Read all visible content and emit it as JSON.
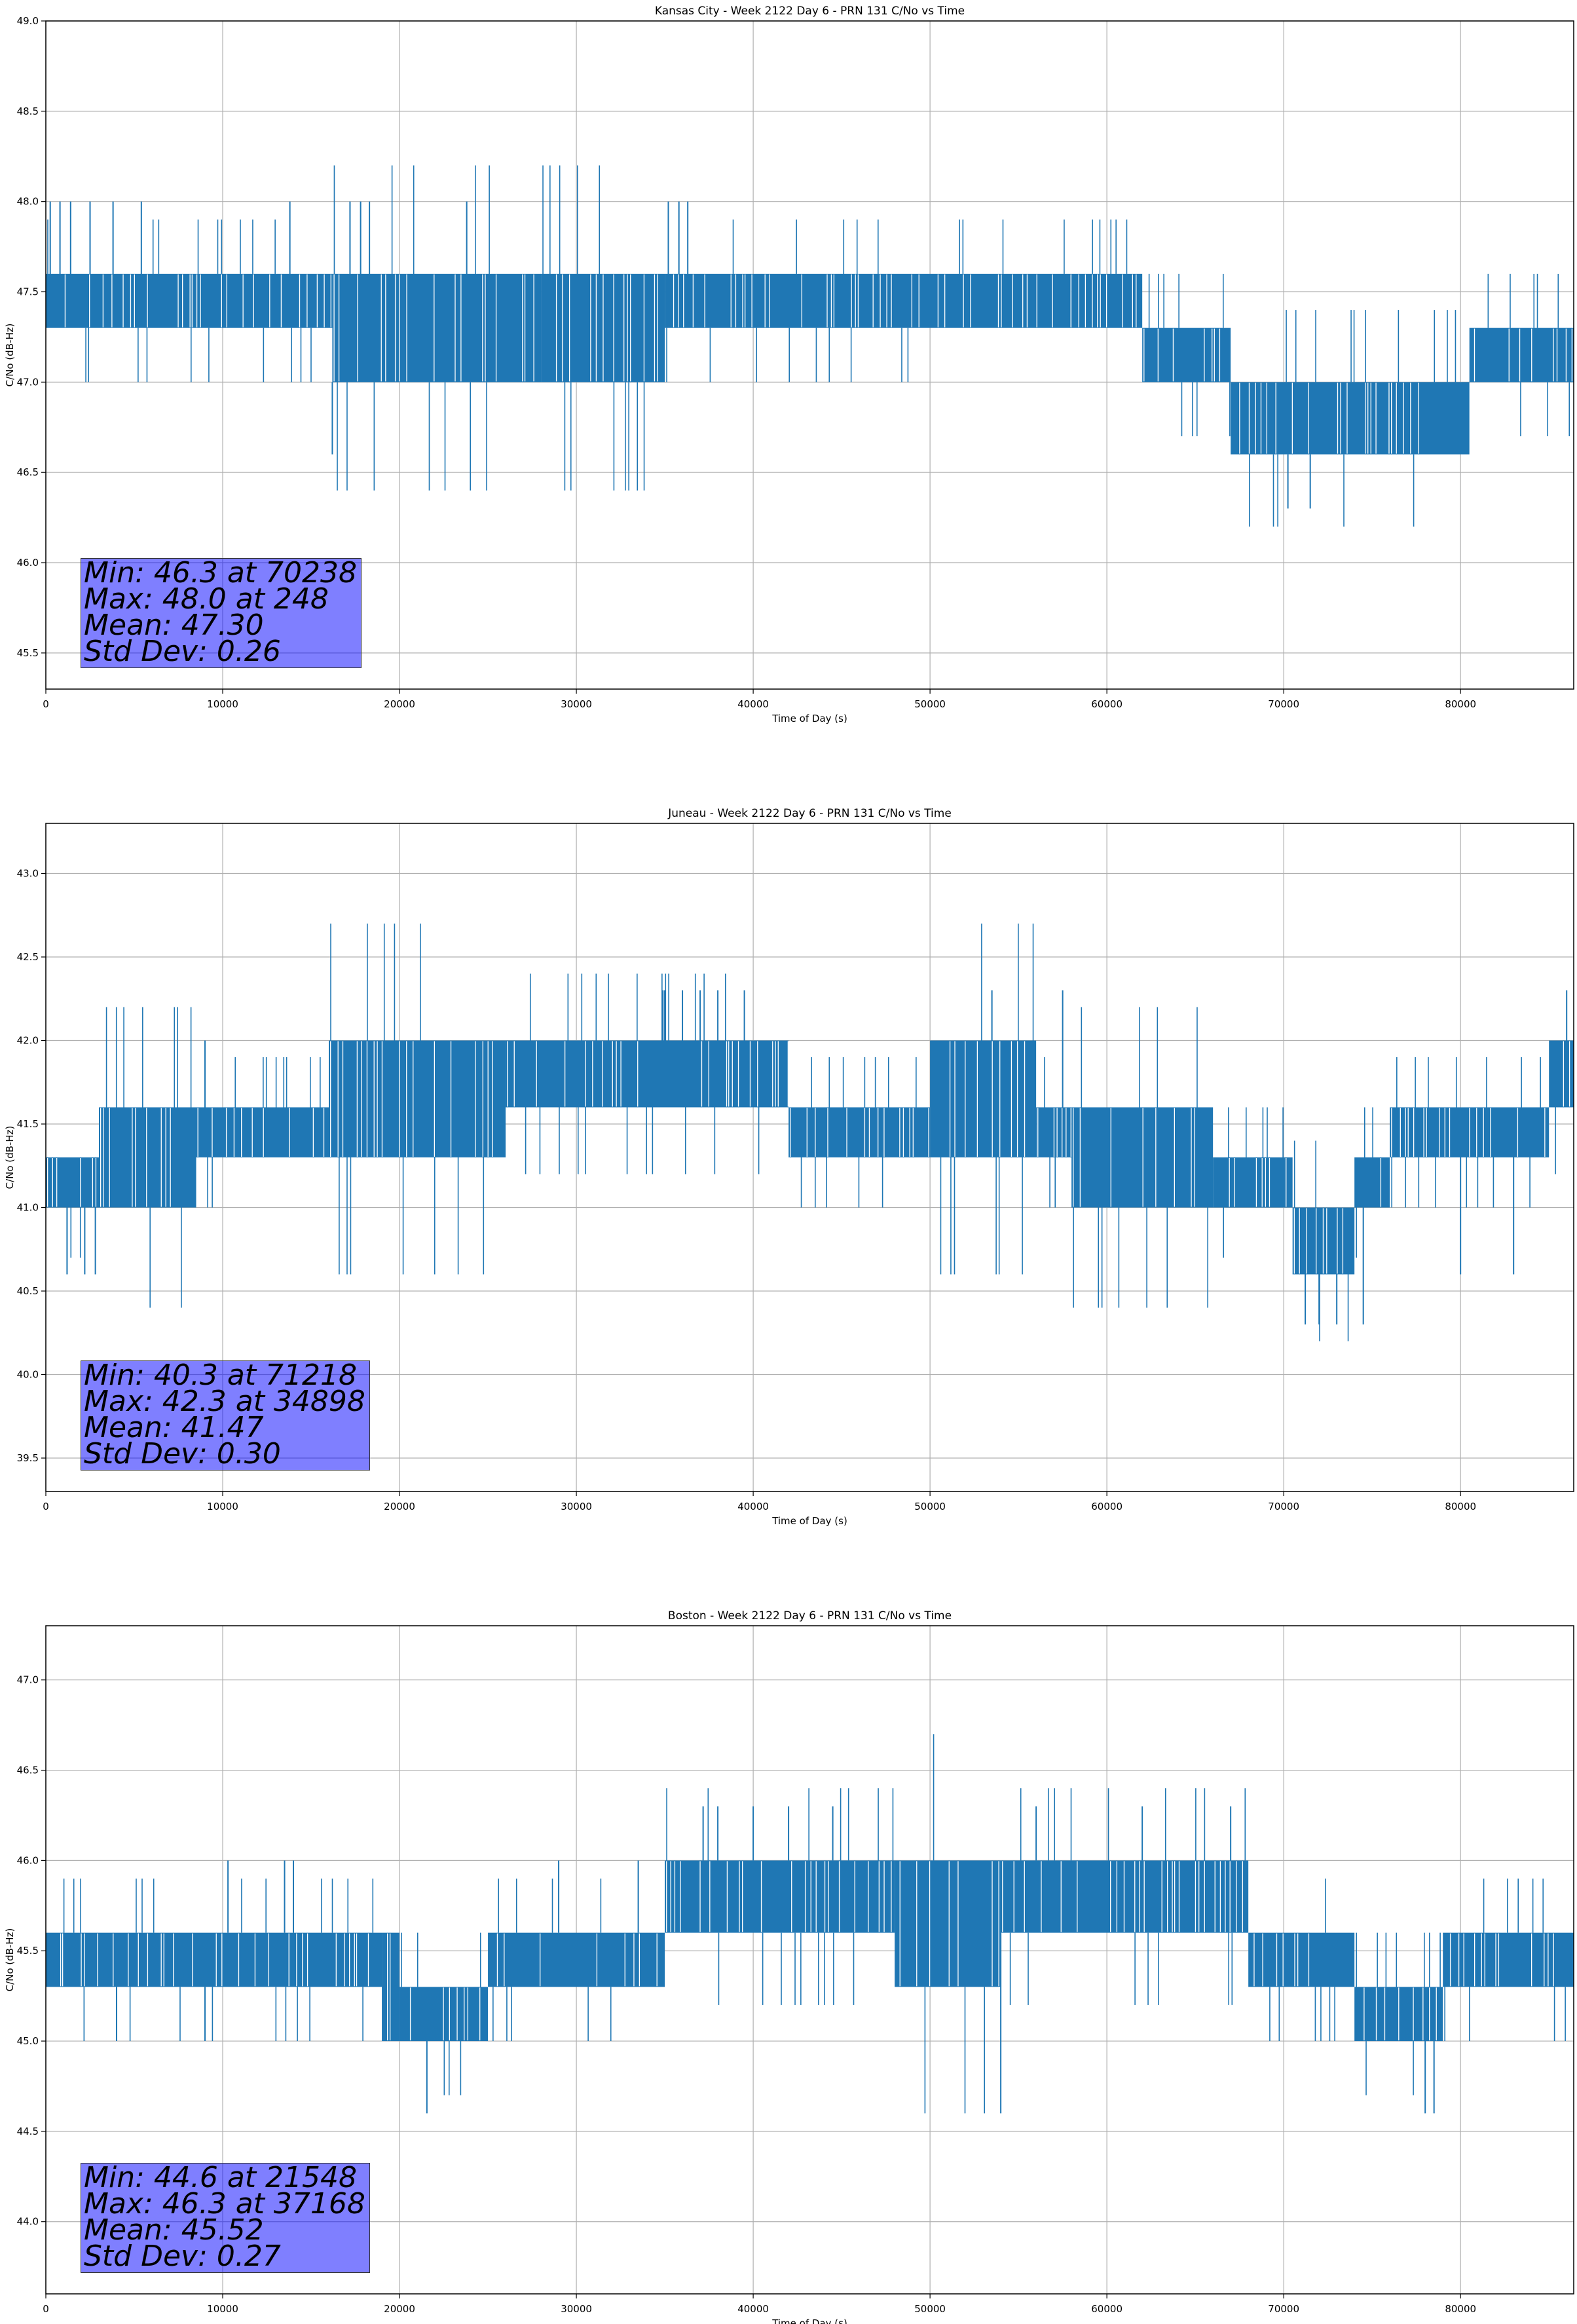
{
  "chart_data": [
    {
      "type": "line",
      "title": "Kansas City - Week 2122 Day 6 - PRN 131 C/No vs Time",
      "xlabel": "Time of Day (s)",
      "ylabel": "C/No (dB-Hz)",
      "xlim": [
        0,
        86400
      ],
      "ylim": [
        45.3,
        49.0
      ],
      "xticks": [
        "0",
        "10000",
        "20000",
        "30000",
        "40000",
        "50000",
        "60000",
        "70000",
        "80000"
      ],
      "yticks": [
        "45.5",
        "46.0",
        "46.5",
        "47.0",
        "47.5",
        "48.0",
        "48.5",
        "49.0"
      ],
      "grid": true,
      "color": "#1f77b4",
      "segments": [
        [
          0,
          47.3,
          47.6
        ],
        [
          16200,
          47.0,
          47.6
        ],
        [
          28000,
          47.0,
          47.6
        ],
        [
          35000,
          47.3,
          47.6
        ],
        [
          58000,
          47.3,
          47.6
        ],
        [
          62000,
          47.0,
          47.3
        ],
        [
          67000,
          46.6,
          47.0
        ],
        [
          80500,
          47.0,
          47.3
        ],
        [
          86400,
          47.0,
          47.3
        ]
      ],
      "spikes": [
        [
          248,
          48.0
        ],
        [
          800,
          48.0
        ],
        [
          1400,
          48.0
        ],
        [
          2500,
          48.0
        ],
        [
          3800,
          48.0
        ],
        [
          5400,
          48.0
        ],
        [
          13800,
          48.0
        ],
        [
          16200,
          46.6
        ],
        [
          17200,
          48.0
        ],
        [
          17800,
          48.0
        ],
        [
          18300,
          48.0
        ],
        [
          23800,
          48.0
        ],
        [
          35200,
          48.0
        ],
        [
          35800,
          48.0
        ],
        [
          36300,
          48.0
        ],
        [
          70238,
          46.3
        ],
        [
          71500,
          46.3
        ]
      ],
      "stats": {
        "min": "Min: 46.3 at 70238",
        "max": "Max: 48.0 at 248",
        "mean": "Mean: 47.30",
        "std": "Std Dev: 0.26"
      }
    },
    {
      "type": "line",
      "title": "Juneau - Week 2122 Day 6 - PRN 131 C/No vs Time",
      "xlabel": "Time of Day (s)",
      "ylabel": "C/No (dB-Hz)",
      "xlim": [
        0,
        86400
      ],
      "ylim": [
        39.3,
        43.3
      ],
      "xticks": [
        "0",
        "10000",
        "20000",
        "30000",
        "40000",
        "50000",
        "60000",
        "70000",
        "80000"
      ],
      "yticks": [
        "39.5",
        "40.0",
        "40.5",
        "41.0",
        "41.5",
        "42.0",
        "42.5",
        "43.0"
      ],
      "grid": true,
      "color": "#1f77b4",
      "segments": [
        [
          0,
          41.0,
          41.3
        ],
        [
          3000,
          41.0,
          41.6
        ],
        [
          8500,
          41.3,
          41.6
        ],
        [
          16000,
          41.3,
          42.0
        ],
        [
          26000,
          41.6,
          42.0
        ],
        [
          41000,
          41.6,
          42.0
        ],
        [
          42000,
          41.3,
          41.6
        ],
        [
          50000,
          41.3,
          42.0
        ],
        [
          56000,
          41.3,
          41.6
        ],
        [
          58000,
          41.0,
          41.6
        ],
        [
          66000,
          41.0,
          41.3
        ],
        [
          70500,
          40.6,
          41.0
        ],
        [
          74000,
          41.0,
          41.3
        ],
        [
          76000,
          41.3,
          41.6
        ],
        [
          85000,
          41.6,
          42.0
        ],
        [
          86400,
          41.6,
          42.0
        ]
      ],
      "spikes": [
        [
          1200,
          40.6
        ],
        [
          2200,
          40.6
        ],
        [
          2800,
          40.6
        ],
        [
          9000,
          42.0
        ],
        [
          35000,
          42.3
        ],
        [
          36000,
          42.3
        ],
        [
          37000,
          42.3
        ],
        [
          38000,
          42.3
        ],
        [
          34898,
          42.3
        ],
        [
          39500,
          42.3
        ],
        [
          53500,
          42.3
        ],
        [
          57500,
          42.3
        ],
        [
          71218,
          40.3
        ],
        [
          72000,
          40.3
        ],
        [
          73000,
          40.3
        ],
        [
          74500,
          40.3
        ],
        [
          80000,
          40.6
        ],
        [
          83000,
          40.6
        ],
        [
          86000,
          42.3
        ]
      ],
      "stats": {
        "min": "Min: 40.3 at 71218",
        "max": "Max: 42.3 at 34898",
        "mean": "Mean: 41.47",
        "std": "Std Dev: 0.30"
      }
    },
    {
      "type": "line",
      "title": "Boston - Week 2122 Day 6 - PRN 131 C/No vs Time",
      "xlabel": "Time of Day (s)",
      "ylabel": "C/No (dB-Hz)",
      "xlim": [
        0,
        86400
      ],
      "ylim": [
        43.6,
        47.3
      ],
      "xticks": [
        "0",
        "10000",
        "20000",
        "30000",
        "40000",
        "50000",
        "60000",
        "70000",
        "80000"
      ],
      "yticks": [
        "44.0",
        "44.5",
        "45.0",
        "45.5",
        "46.0",
        "46.5",
        "47.0"
      ],
      "grid": true,
      "color": "#1f77b4",
      "segments": [
        [
          0,
          45.3,
          45.6
        ],
        [
          19000,
          45.0,
          45.6
        ],
        [
          20000,
          45.0,
          45.3
        ],
        [
          25000,
          45.3,
          45.6
        ],
        [
          35000,
          45.6,
          46.0
        ],
        [
          48000,
          45.3,
          46.0
        ],
        [
          54000,
          45.6,
          46.0
        ],
        [
          68000,
          45.3,
          45.6
        ],
        [
          74000,
          45.0,
          45.3
        ],
        [
          79000,
          45.3,
          45.6
        ],
        [
          86400,
          45.3,
          45.6
        ]
      ],
      "spikes": [
        [
          4000,
          45.0
        ],
        [
          9000,
          45.0
        ],
        [
          10300,
          46.0
        ],
        [
          13500,
          46.0
        ],
        [
          14000,
          46.0
        ],
        [
          21548,
          44.6
        ],
        [
          29000,
          46.0
        ],
        [
          33500,
          46.0
        ],
        [
          37168,
          46.3
        ],
        [
          38000,
          46.3
        ],
        [
          40000,
          46.3
        ],
        [
          42000,
          46.3
        ],
        [
          44500,
          46.3
        ],
        [
          54000,
          44.6
        ],
        [
          56000,
          46.3
        ],
        [
          62000,
          46.3
        ],
        [
          67000,
          46.3
        ],
        [
          78000,
          44.6
        ],
        [
          78500,
          44.6
        ]
      ],
      "stats": {
        "min": "Min: 44.6 at 21548",
        "max": "Max: 46.3 at 37168",
        "mean": "Mean: 45.52",
        "std": "Std Dev: 0.27"
      }
    }
  ]
}
